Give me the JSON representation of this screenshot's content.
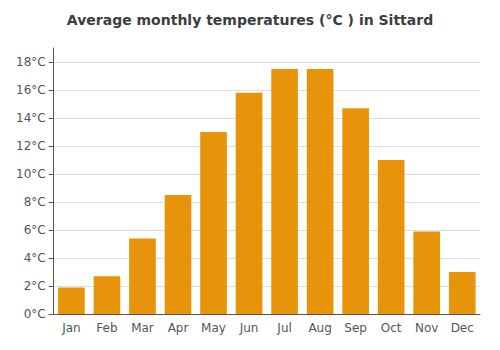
{
  "chart_data": {
    "type": "bar",
    "title": "Average monthly temperatures (°C ) in Sittard",
    "categories": [
      "Jan",
      "Feb",
      "Mar",
      "Apr",
      "May",
      "Jun",
      "Jul",
      "Aug",
      "Sep",
      "Oct",
      "Nov",
      "Dec"
    ],
    "values": [
      1.9,
      2.7,
      5.4,
      8.5,
      13.0,
      15.8,
      17.5,
      17.5,
      14.7,
      11.0,
      5.9,
      3.0
    ],
    "color": "#E8940A",
    "ylim": [
      0,
      19
    ],
    "yticks": [
      {
        "value": 0,
        "label": "0°C"
      },
      {
        "value": 2,
        "label": "2°C"
      },
      {
        "value": 4,
        "label": "4°C"
      },
      {
        "value": 6,
        "label": "6°C"
      },
      {
        "value": 8,
        "label": "8°C"
      },
      {
        "value": 10,
        "label": "10°C"
      },
      {
        "value": 12,
        "label": "12°C"
      },
      {
        "value": 14,
        "label": "14°C"
      },
      {
        "value": 16,
        "label": "16°C"
      },
      {
        "value": 18,
        "label": "18°C"
      }
    ],
    "grid": true
  }
}
